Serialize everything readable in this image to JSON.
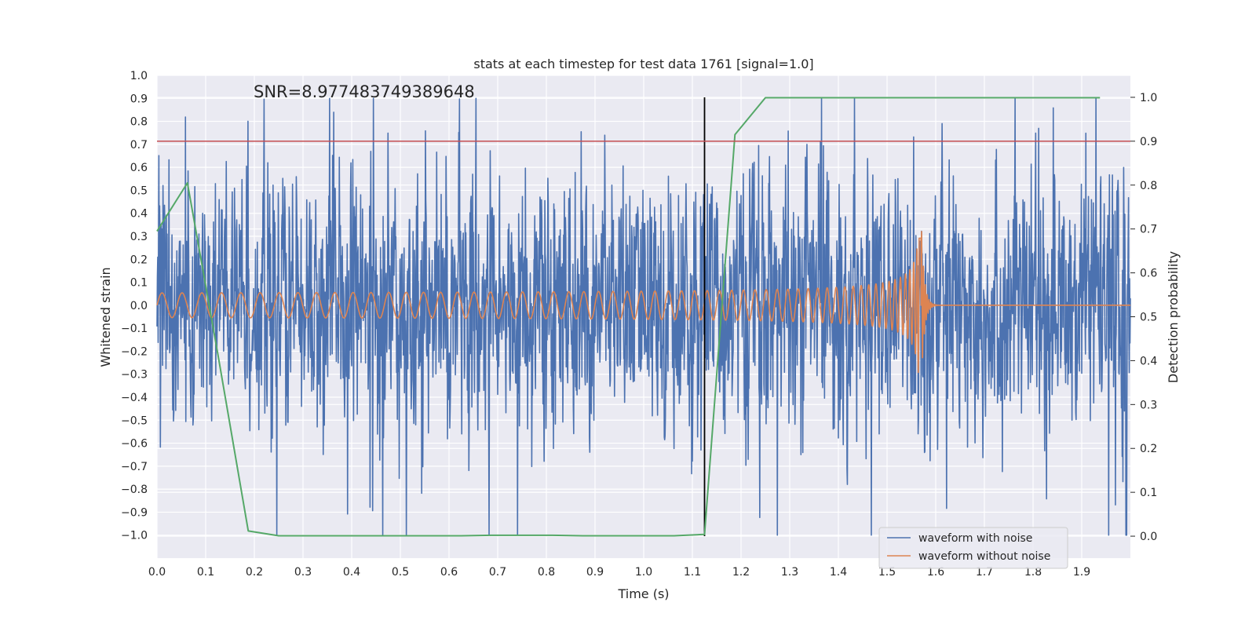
{
  "chart_data": {
    "type": "line",
    "title": "stats at each timestep for test data 1761 [signal=1.0]",
    "xlabel": "Time (s)",
    "ylabel": "Whitened strain",
    "y2label": "Detection probability",
    "xlim": [
      0.0,
      2.0
    ],
    "ylim": [
      -1.1,
      1.0
    ],
    "y2lim": [
      -0.05,
      1.05
    ],
    "xticks": [
      0.0,
      0.1,
      0.2,
      0.3,
      0.4,
      0.5,
      0.6,
      0.7,
      0.8,
      0.9,
      1.0,
      1.1,
      1.2,
      1.3,
      1.4,
      1.5,
      1.6,
      1.7,
      1.8,
      1.9
    ],
    "yticks": [
      1.0,
      0.9,
      0.8,
      0.7,
      0.6,
      0.5,
      0.4,
      0.3,
      0.2,
      0.1,
      0.0,
      -0.1,
      -0.2,
      -0.3,
      -0.4,
      -0.5,
      -0.6,
      -0.7,
      -0.8,
      -0.9,
      -1.0
    ],
    "y2ticks": [
      0.0,
      0.1,
      0.2,
      0.3,
      0.4,
      0.5,
      0.6,
      0.7,
      0.8,
      0.9,
      1.0
    ],
    "grid": true,
    "legend_position": "lower-right",
    "annotation": "SNR=8.977483749389648",
    "series": [
      {
        "name": "waveform with noise",
        "color": "#4c72b0",
        "axis": "left",
        "envelope": [
          0.9,
          -1.0
        ]
      },
      {
        "name": "waveform without noise",
        "color": "#dd8452",
        "axis": "left",
        "chirp_start": 0.0,
        "merger_time": 1.57,
        "peak_amplitude": 0.38,
        "initial_amplitude": 0.045
      },
      {
        "color": "#55a868",
        "axis": "right",
        "x": [
          0.0,
          0.0625,
          0.125,
          0.1875,
          0.25,
          0.3125,
          0.375,
          0.4375,
          0.5,
          0.5625,
          0.625,
          0.6875,
          0.75,
          0.8125,
          0.875,
          0.9375,
          1.0,
          1.0625,
          1.125,
          1.1875,
          1.25,
          1.3125,
          1.375,
          1.4375,
          1.5,
          1.5625,
          1.625,
          1.6875,
          1.75,
          1.8125,
          1.875,
          1.9375
        ],
        "y": [
          0.695,
          0.805,
          0.415,
          0.012,
          0.001,
          0.001,
          0.001,
          0.001,
          0.001,
          0.001,
          0.001,
          0.002,
          0.002,
          0.002,
          0.001,
          0.001,
          0.001,
          0.001,
          0.004,
          0.915,
          0.999,
          0.999,
          0.999,
          0.999,
          0.999,
          0.999,
          0.999,
          0.999,
          0.999,
          0.999,
          0.999,
          0.999
        ]
      }
    ],
    "threshold": {
      "value": 0.9,
      "axis": "right",
      "color": "#c44e52"
    },
    "marker": {
      "x": 1.125,
      "color": "#000000"
    }
  }
}
